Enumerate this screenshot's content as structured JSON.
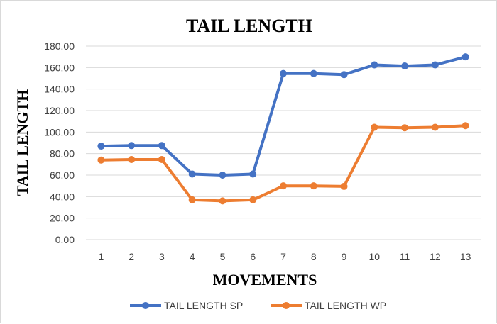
{
  "chart_data": {
    "type": "line",
    "title": "TAIL LENGTH",
    "xlabel": "MOVEMENTS",
    "ylabel": "TAIL LENGTH",
    "categories": [
      "1",
      "2",
      "3",
      "4",
      "5",
      "6",
      "7",
      "8",
      "9",
      "10",
      "11",
      "12",
      "13"
    ],
    "ylim": [
      0,
      180
    ],
    "yticks": [
      "0.00",
      "20.00",
      "40.00",
      "60.00",
      "80.00",
      "100.00",
      "120.00",
      "140.00",
      "160.00",
      "180.00"
    ],
    "grid": true,
    "legend_position": "bottom",
    "series": [
      {
        "name": "TAIL LENGTH SP",
        "color": "#4472C4",
        "values": [
          87,
          87.5,
          87.5,
          61,
          60,
          61,
          154.5,
          154.5,
          153.5,
          162.5,
          161.5,
          162.5,
          170
        ]
      },
      {
        "name": "TAIL LENGTH WP",
        "color": "#ED7D31",
        "values": [
          74,
          74.5,
          74.5,
          37,
          36,
          37,
          50,
          50,
          49.5,
          104.5,
          104,
          104.5,
          106
        ]
      }
    ]
  }
}
